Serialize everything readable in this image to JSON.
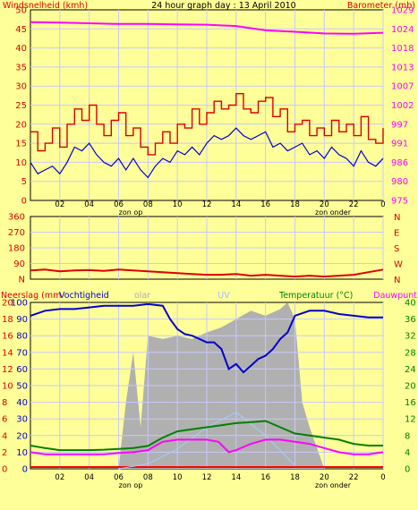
{
  "title": "24 hour graph day : 13 April 2010",
  "colors": {
    "background": "#ffff99",
    "plot_bg": "#ffff99",
    "grid": "#c8c8ff",
    "gust": "#dd0000",
    "wind": "#0000cc",
    "barometer": "#ff00ff",
    "direction": "#dd0000",
    "humidity": "#0000cc",
    "solar": "#b0b0b0",
    "uv": "#a0d0ff",
    "temperature": "#008000",
    "dewpoint": "#ff00ff",
    "rain": "#ff0000"
  },
  "chart_data": [
    {
      "type": "line",
      "title": "24 hour graph day : 13 April 2010",
      "ylabel_left": "Windsnelheid (kmh)",
      "ylabel_right": "Barometer (mb)",
      "x_ticks": [
        "02",
        "04",
        "06",
        "08",
        "10",
        "12",
        "14",
        "16",
        "18",
        "20",
        "22",
        "0"
      ],
      "left_ticks": [
        "0",
        "5",
        "10",
        "15",
        "20",
        "25",
        "30",
        "35",
        "40",
        "45",
        "50"
      ],
      "right_ticks": [
        "975",
        "980",
        "986",
        "991",
        "997",
        "1002",
        "1007",
        "1013",
        "1018",
        "1024",
        "1029"
      ],
      "ylim_left": [
        0,
        50
      ],
      "ylim_right": [
        975,
        1029
      ],
      "markers": [
        "zon op",
        "zon onder"
      ],
      "series": [
        {
          "name": "gust",
          "axis": "left",
          "x": [
            0,
            0.5,
            1,
            1.5,
            2,
            2.5,
            3,
            3.5,
            4,
            4.5,
            5,
            5.5,
            6,
            6.5,
            7,
            7.5,
            8,
            8.5,
            9,
            9.5,
            10,
            10.5,
            11,
            11.5,
            12,
            12.5,
            13,
            13.5,
            14,
            14.5,
            15,
            15.5,
            16,
            16.5,
            17,
            17.5,
            18,
            18.5,
            19,
            19.5,
            20,
            20.5,
            21,
            21.5,
            22,
            22.5,
            23,
            23.5,
            24
          ],
          "y": [
            18,
            13,
            15,
            19,
            14,
            20,
            24,
            21,
            25,
            20,
            17,
            21,
            23,
            17,
            19,
            14,
            12,
            15,
            18,
            15,
            20,
            19,
            24,
            20,
            23,
            26,
            24,
            25,
            28,
            24,
            23,
            26,
            27,
            22,
            24,
            18,
            20,
            21,
            17,
            19,
            17,
            21,
            18,
            20,
            17,
            22,
            16,
            15,
            19
          ]
        },
        {
          "name": "wind",
          "axis": "left",
          "x": [
            0,
            0.5,
            1,
            1.5,
            2,
            2.5,
            3,
            3.5,
            4,
            4.5,
            5,
            5.5,
            6,
            6.5,
            7,
            7.5,
            8,
            8.5,
            9,
            9.5,
            10,
            10.5,
            11,
            11.5,
            12,
            12.5,
            13,
            13.5,
            14,
            14.5,
            15,
            15.5,
            16,
            16.5,
            17,
            17.5,
            18,
            18.5,
            19,
            19.5,
            20,
            20.5,
            21,
            21.5,
            22,
            22.5,
            23,
            23.5,
            24
          ],
          "y": [
            10,
            7,
            8,
            9,
            7,
            10,
            14,
            13,
            15,
            12,
            10,
            9,
            11,
            8,
            11,
            8,
            6,
            9,
            11,
            10,
            13,
            12,
            14,
            12,
            15,
            17,
            16,
            17,
            19,
            17,
            16,
            17,
            18,
            14,
            15,
            13,
            14,
            15,
            12,
            13,
            11,
            14,
            12,
            11,
            9,
            13,
            10,
            9,
            11
          ]
        },
        {
          "name": "barometer",
          "axis": "right",
          "x": [
            0,
            2,
            4,
            6,
            8,
            10,
            12,
            14,
            15,
            16,
            18,
            20,
            22,
            24
          ],
          "y": [
            1025.5,
            1025.4,
            1025.2,
            1025,
            1025,
            1024.9,
            1024.8,
            1024.4,
            1023.8,
            1023.2,
            1022.8,
            1022.3,
            1022.2,
            1022.5
          ]
        }
      ]
    },
    {
      "type": "line",
      "x_ticks": [],
      "left_ticks": [
        "N",
        "90",
        "180",
        "270",
        "360"
      ],
      "right_labels": [
        "N",
        "W",
        "S",
        "E",
        "N"
      ],
      "ylim": [
        0,
        360
      ],
      "series": [
        {
          "name": "wind direction",
          "x": [
            0,
            1,
            2,
            3,
            4,
            5,
            6,
            7,
            8,
            9,
            10,
            11,
            12,
            13,
            14,
            15,
            16,
            17,
            18,
            19,
            20,
            21,
            22,
            23,
            24
          ],
          "y": [
            50,
            55,
            45,
            50,
            52,
            48,
            55,
            50,
            45,
            40,
            35,
            30,
            25,
            25,
            30,
            20,
            25,
            20,
            15,
            20,
            15,
            20,
            25,
            40,
            55
          ]
        }
      ]
    },
    {
      "type": "line",
      "labels_left": [
        "Neerslag (mm",
        "Vochtigheid"
      ],
      "label_solar": "olar",
      "label_uv": "UV",
      "labels_right": [
        "Temperatuur (°C)",
        "Dauwpunt"
      ],
      "x_ticks": [
        "02",
        "04",
        "06",
        "08",
        "10",
        "12",
        "14",
        "16",
        "18",
        "20",
        "22",
        "0"
      ],
      "rain_ticks": [
        "0",
        "2",
        "4",
        "6",
        "8",
        "10",
        "12",
        "14",
        "16",
        "18",
        "20"
      ],
      "humidity_ticks": [
        "0",
        "10",
        "20",
        "30",
        "40",
        "50",
        "60",
        "70",
        "80",
        "90",
        "100"
      ],
      "temp_ticks": [
        "0",
        "4",
        "8",
        "12",
        "16",
        "20",
        "24",
        "28",
        "32",
        "36",
        "40"
      ],
      "markers": [
        "zon op",
        "zon onder"
      ],
      "ylim_humidity": [
        0,
        100
      ],
      "ylim_temperature": [
        0,
        40
      ],
      "series": [
        {
          "name": "humidity",
          "axis": "humidity",
          "x": [
            0,
            1,
            2,
            3,
            4,
            5,
            6,
            7,
            8,
            9,
            9.5,
            10,
            10.5,
            11,
            11.5,
            12,
            12.5,
            13,
            13.5,
            14,
            14.5,
            15,
            15.5,
            16,
            16.5,
            17,
            17.5,
            18,
            19,
            20,
            21,
            22,
            23,
            24
          ],
          "y": [
            92,
            95,
            96,
            96,
            97,
            98,
            98,
            98,
            99,
            98,
            90,
            84,
            81,
            80,
            78,
            76,
            76,
            72,
            60,
            63,
            58,
            62,
            66,
            68,
            72,
            78,
            82,
            92,
            95,
            95,
            93,
            92,
            91,
            91
          ]
        },
        {
          "name": "solar",
          "axis": "humidity",
          "x": [
            6,
            6.5,
            7,
            7.5,
            8,
            9,
            10,
            11,
            12,
            13,
            14,
            15,
            16,
            17,
            17.5,
            18,
            18.5,
            19,
            20
          ],
          "y": [
            0,
            40,
            70,
            25,
            80,
            78,
            80,
            78,
            82,
            85,
            90,
            95,
            92,
            96,
            100,
            90,
            40,
            25,
            0
          ]
        },
        {
          "name": "uv",
          "axis": "humidity",
          "x": [
            6,
            8,
            10,
            12,
            14,
            16,
            18
          ],
          "y": [
            0,
            3,
            12,
            25,
            34,
            20,
            2
          ]
        },
        {
          "name": "Temperatuur (°C)",
          "axis": "temperature",
          "x": [
            0,
            1,
            2,
            3,
            4,
            5,
            6,
            7,
            8,
            8.5,
            9,
            10,
            11,
            12,
            13,
            14,
            15,
            16,
            17,
            18,
            19,
            20,
            21,
            22,
            23,
            24
          ],
          "y": [
            5.6,
            5,
            4.5,
            4.5,
            4.5,
            4.6,
            4.8,
            5,
            5.5,
            6.5,
            7.5,
            9,
            9.5,
            10,
            10.5,
            11,
            11.2,
            11.5,
            10,
            8.5,
            8,
            7.5,
            7,
            6,
            5.6,
            5.6
          ]
        },
        {
          "name": "Dauwpunt",
          "axis": "temperature",
          "x": [
            0,
            1,
            2,
            3,
            4,
            5,
            6,
            7,
            8,
            8.5,
            9,
            10,
            11,
            12,
            12.8,
            13.5,
            14,
            15,
            16,
            17,
            18,
            19,
            20,
            21,
            22,
            23,
            24
          ],
          "y": [
            4,
            3.5,
            3.5,
            3.5,
            3.5,
            3.5,
            3.8,
            4,
            4.5,
            5.5,
            6.5,
            7,
            7,
            7,
            6.5,
            4,
            4.5,
            6,
            7,
            7,
            6.5,
            6,
            5,
            4,
            3.5,
            3.5,
            4
          ]
        }
      ]
    }
  ]
}
